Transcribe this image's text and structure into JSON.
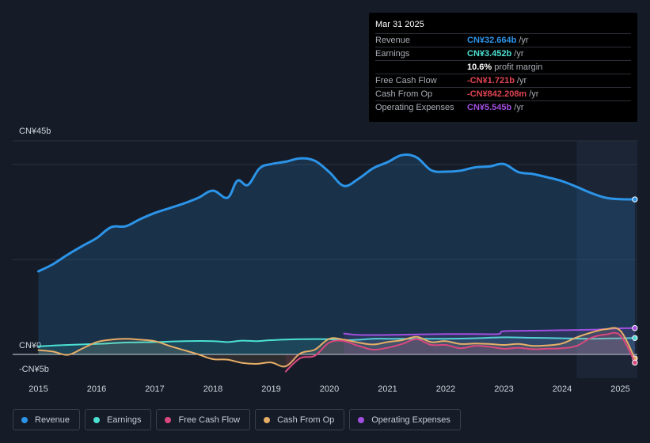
{
  "chart_data": {
    "type": "area",
    "ylim": [
      -5,
      45
    ],
    "y_tick_labels": [
      {
        "value": 45,
        "label": "CN¥45b"
      },
      {
        "value": 0,
        "label": "CN¥0"
      },
      {
        "value": -5,
        "label": "-CN¥5b"
      }
    ],
    "x_tick_labels": [
      "2015",
      "2016",
      "2017",
      "2018",
      "2019",
      "2020",
      "2021",
      "2022",
      "2023",
      "2024",
      "2025"
    ],
    "highlight_start": 2024.25,
    "series": [
      {
        "name": "Revenue",
        "color": "#2c94e8",
        "fill": true,
        "points": [
          [
            2015,
            17.5
          ],
          [
            2015.25,
            19
          ],
          [
            2015.5,
            21
          ],
          [
            2015.75,
            22.8
          ],
          [
            2016,
            24.5
          ],
          [
            2016.25,
            26.8
          ],
          [
            2016.5,
            27
          ],
          [
            2016.75,
            28.5
          ],
          [
            2017,
            29.8
          ],
          [
            2017.25,
            30.8
          ],
          [
            2017.5,
            31.8
          ],
          [
            2017.75,
            33
          ],
          [
            2018,
            34.5
          ],
          [
            2018.25,
            33
          ],
          [
            2018.42,
            36.6
          ],
          [
            2018.6,
            35.7
          ],
          [
            2018.8,
            39.2
          ],
          [
            2019,
            40.1
          ],
          [
            2019.25,
            40.6
          ],
          [
            2019.5,
            41.3
          ],
          [
            2019.75,
            40.8
          ],
          [
            2020,
            38.4
          ],
          [
            2020.25,
            35.5
          ],
          [
            2020.5,
            37
          ],
          [
            2020.75,
            39.2
          ],
          [
            2021,
            40.5
          ],
          [
            2021.25,
            42
          ],
          [
            2021.5,
            41.5
          ],
          [
            2021.75,
            38.8
          ],
          [
            2022,
            38.5
          ],
          [
            2022.25,
            38.7
          ],
          [
            2022.5,
            39.4
          ],
          [
            2022.75,
            39.6
          ],
          [
            2023,
            40.1
          ],
          [
            2023.25,
            38.4
          ],
          [
            2023.5,
            38
          ],
          [
            2023.75,
            37.3
          ],
          [
            2024,
            36.5
          ],
          [
            2024.25,
            35.3
          ],
          [
            2024.5,
            34
          ],
          [
            2024.75,
            33
          ],
          [
            2025,
            32.7
          ],
          [
            2025.25,
            32.664
          ]
        ]
      },
      {
        "name": "Earnings",
        "color": "#4ce1d3",
        "fill": false,
        "points": [
          [
            2015,
            1.7
          ],
          [
            2015.5,
            2
          ],
          [
            2016,
            2.2
          ],
          [
            2016.5,
            2.5
          ],
          [
            2017,
            2.6
          ],
          [
            2017.5,
            2.8
          ],
          [
            2018,
            2.8
          ],
          [
            2018.25,
            2.6
          ],
          [
            2018.5,
            2.9
          ],
          [
            2018.75,
            2.8
          ],
          [
            2019,
            3
          ],
          [
            2019.5,
            3.2
          ],
          [
            2020,
            3.2
          ],
          [
            2020.25,
            3
          ],
          [
            2020.5,
            3.1
          ],
          [
            2020.75,
            3.3
          ],
          [
            2021,
            3.3
          ],
          [
            2021.5,
            3.3
          ],
          [
            2022,
            3.3
          ],
          [
            2022.5,
            3.4
          ],
          [
            2023,
            3.6
          ],
          [
            2023.5,
            3.5
          ],
          [
            2024,
            3.4
          ],
          [
            2024.5,
            3.3
          ],
          [
            2025,
            3.4
          ],
          [
            2025.25,
            3.452
          ]
        ]
      },
      {
        "name": "Free Cash Flow",
        "color": "#d9487f",
        "fill": false,
        "points": [
          [
            2019.25,
            -3.6
          ],
          [
            2019.5,
            -0.8
          ],
          [
            2019.75,
            -0.3
          ],
          [
            2020,
            2.5
          ],
          [
            2020.25,
            2.8
          ],
          [
            2020.5,
            1.8
          ],
          [
            2020.75,
            1
          ],
          [
            2021,
            1.4
          ],
          [
            2021.25,
            2.2
          ],
          [
            2021.5,
            3.2
          ],
          [
            2021.75,
            2
          ],
          [
            2022,
            2
          ],
          [
            2022.25,
            1.3
          ],
          [
            2022.5,
            1.8
          ],
          [
            2022.75,
            1.6
          ],
          [
            2023,
            1.2
          ],
          [
            2023.25,
            1.4
          ],
          [
            2023.5,
            1.1
          ],
          [
            2023.75,
            1.2
          ],
          [
            2024,
            1.3
          ],
          [
            2024.25,
            1.8
          ],
          [
            2024.5,
            3.5
          ],
          [
            2024.75,
            4.2
          ],
          [
            2025,
            4
          ],
          [
            2025.25,
            -1.721
          ]
        ]
      },
      {
        "name": "Cash From Op",
        "color": "#e6ae67",
        "fill": false,
        "points": [
          [
            2015,
            0.9
          ],
          [
            2015.25,
            0.6
          ],
          [
            2015.5,
            -0.1
          ],
          [
            2015.75,
            1.2
          ],
          [
            2016,
            2.6
          ],
          [
            2016.25,
            3.1
          ],
          [
            2016.5,
            3.3
          ],
          [
            2016.75,
            3.1
          ],
          [
            2017,
            2.8
          ],
          [
            2017.25,
            1.8
          ],
          [
            2017.5,
            0.9
          ],
          [
            2017.75,
            0
          ],
          [
            2018,
            -1
          ],
          [
            2018.25,
            -1.1
          ],
          [
            2018.5,
            -1.8
          ],
          [
            2018.75,
            -2
          ],
          [
            2019,
            -1.7
          ],
          [
            2019.25,
            -2.5
          ],
          [
            2019.5,
            0.2
          ],
          [
            2019.75,
            1
          ],
          [
            2020,
            3.3
          ],
          [
            2020.25,
            3.1
          ],
          [
            2020.5,
            2.5
          ],
          [
            2020.75,
            2.1
          ],
          [
            2021,
            2.6
          ],
          [
            2021.25,
            3
          ],
          [
            2021.5,
            3.7
          ],
          [
            2021.75,
            2.6
          ],
          [
            2022,
            2.8
          ],
          [
            2022.25,
            2.2
          ],
          [
            2022.5,
            2.3
          ],
          [
            2022.75,
            2.2
          ],
          [
            2023,
            2
          ],
          [
            2023.25,
            2.2
          ],
          [
            2023.5,
            1.8
          ],
          [
            2023.75,
            1.9
          ],
          [
            2024,
            2.3
          ],
          [
            2024.25,
            3.6
          ],
          [
            2024.5,
            4.6
          ],
          [
            2024.75,
            5.3
          ],
          [
            2025,
            5
          ],
          [
            2025.25,
            -0.842
          ]
        ]
      },
      {
        "name": "Operating Expenses",
        "color": "#a24fe0",
        "fill": false,
        "points": [
          [
            2020.25,
            4.4
          ],
          [
            2020.5,
            4.1
          ],
          [
            2021,
            4.1
          ],
          [
            2021.5,
            4.2
          ],
          [
            2022,
            4.3
          ],
          [
            2022.5,
            4.3
          ],
          [
            2022.9,
            4.3
          ],
          [
            2023,
            4.9
          ],
          [
            2023.5,
            5
          ],
          [
            2024,
            5.1
          ],
          [
            2024.5,
            5.2
          ],
          [
            2025,
            5.5
          ],
          [
            2025.25,
            5.545
          ]
        ]
      }
    ]
  },
  "tooltip": {
    "date": "Mar 31 2025",
    "rows": [
      {
        "label": "Revenue",
        "value": "CN¥32.664b",
        "unit": "/yr",
        "color": "#2c94e8"
      },
      {
        "label": "Earnings",
        "value": "CN¥3.452b",
        "unit": "/yr",
        "color": "#4ce1d3"
      },
      {
        "label": "",
        "value": "10.6%",
        "unit": "profit margin",
        "color": "#ffffff"
      },
      {
        "label": "Free Cash Flow",
        "value": "-CN¥1.721b",
        "unit": "/yr",
        "color": "#e04453"
      },
      {
        "label": "Cash From Op",
        "value": "-CN¥842.208m",
        "unit": "/yr",
        "color": "#e04453"
      },
      {
        "label": "Operating Expenses",
        "value": "CN¥5.545b",
        "unit": "/yr",
        "color": "#a24fe0"
      }
    ]
  },
  "legend": [
    {
      "label": "Revenue",
      "color": "#2c94e8"
    },
    {
      "label": "Earnings",
      "color": "#4ce1d3"
    },
    {
      "label": "Free Cash Flow",
      "color": "#d9487f"
    },
    {
      "label": "Cash From Op",
      "color": "#e6ae67"
    },
    {
      "label": "Operating Expenses",
      "color": "#a24fe0"
    }
  ]
}
